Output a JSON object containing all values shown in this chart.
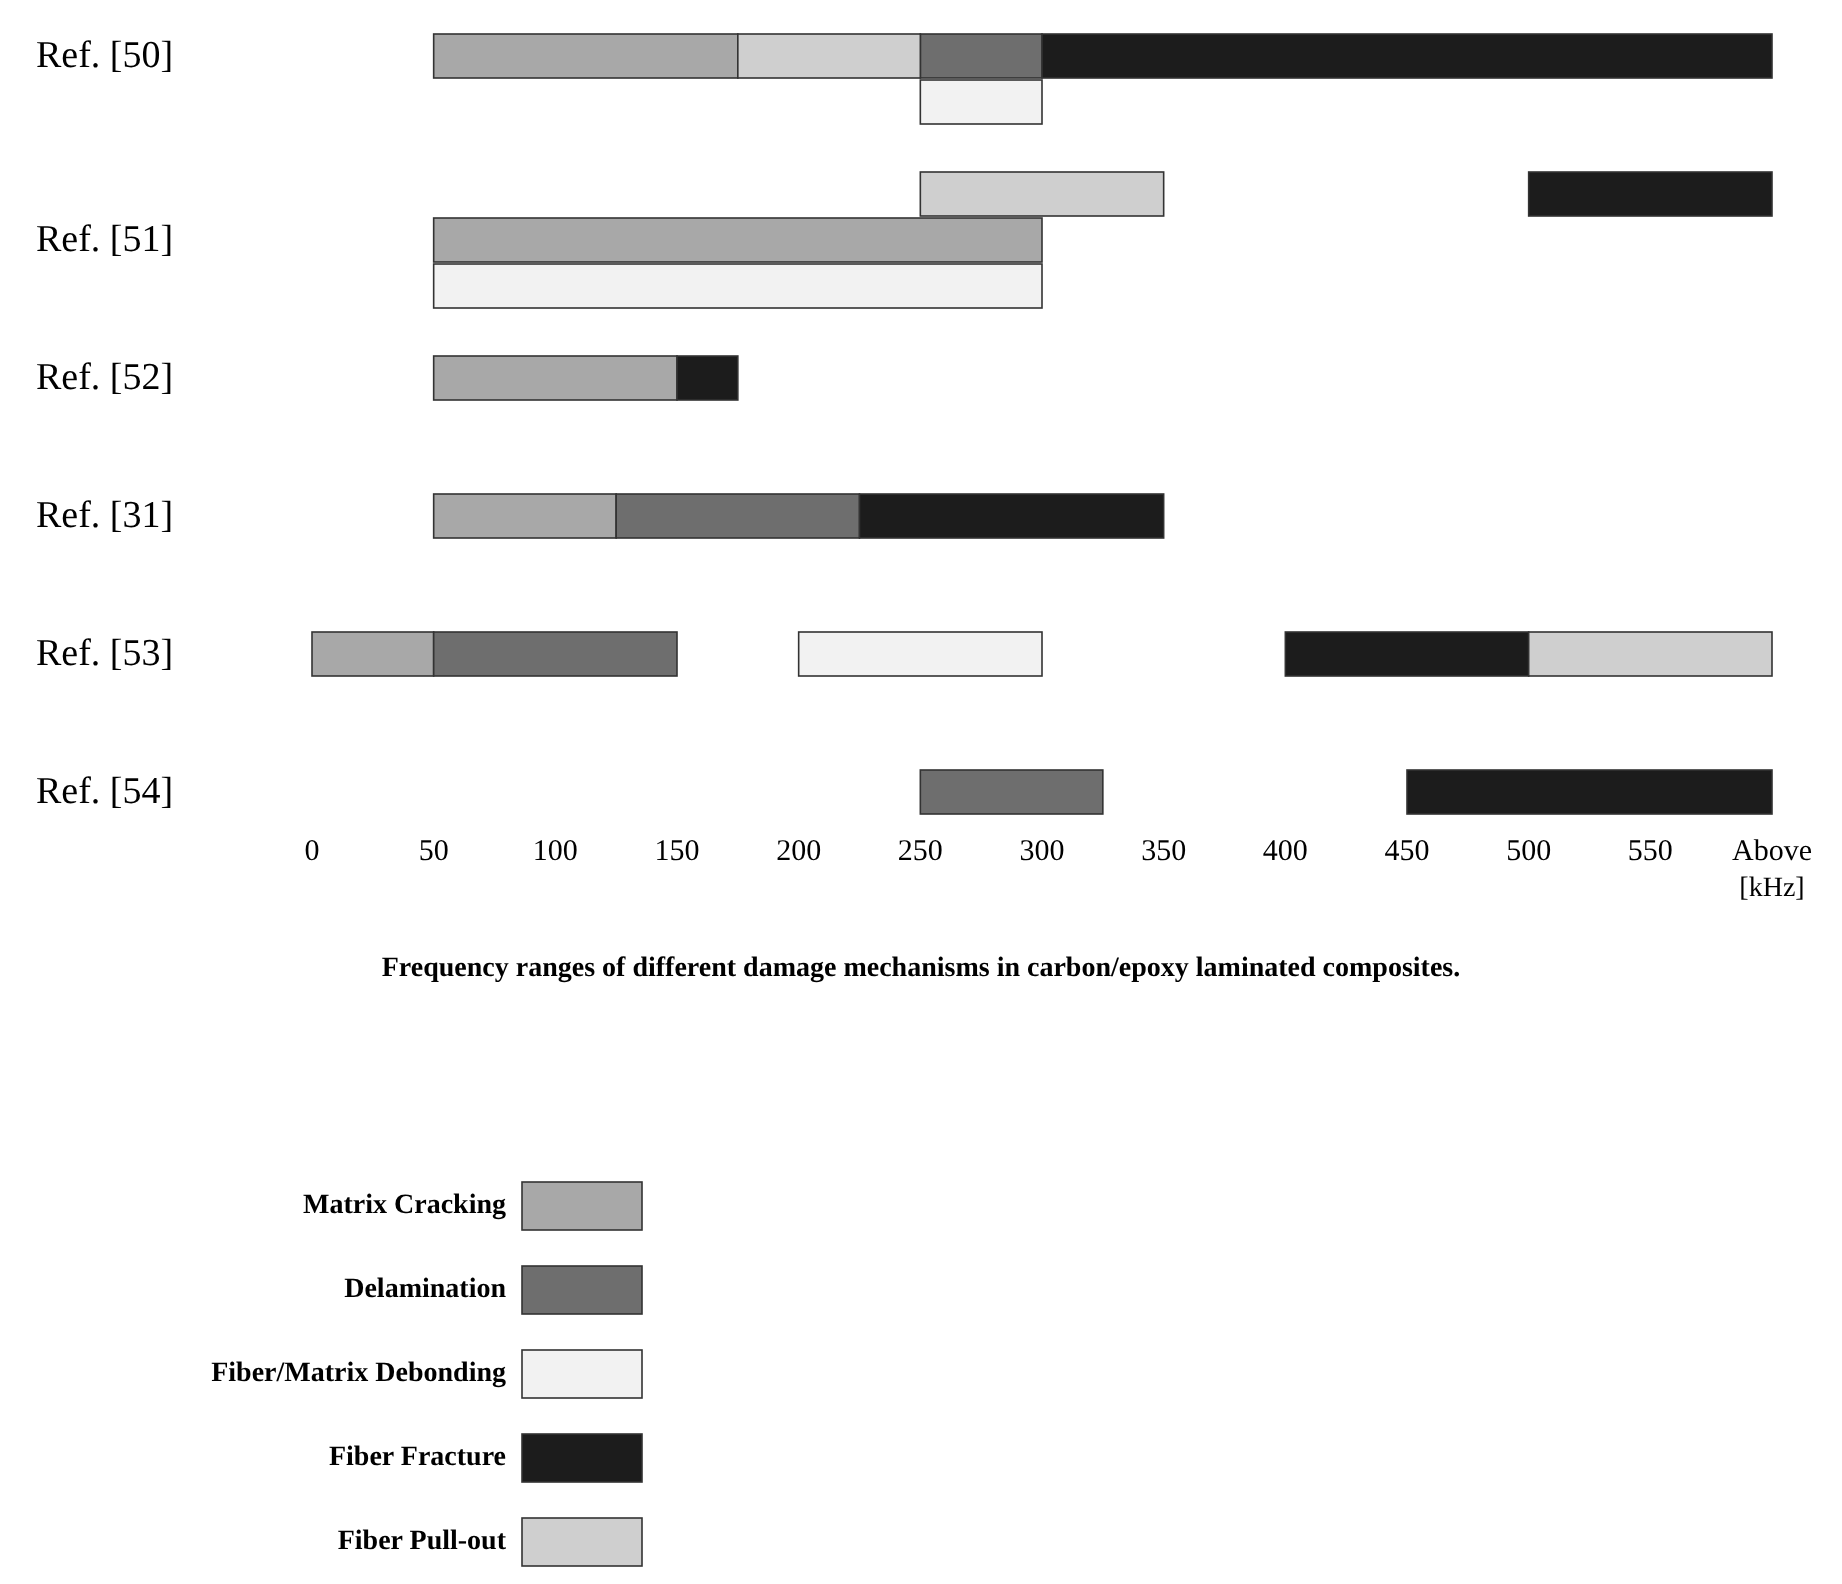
{
  "chart_data": {
    "type": "bar",
    "orientation": "horizontal",
    "title": "Frequency ranges of different damage mechanisms in carbon/epoxy laminated composites.",
    "xlabel": "[kHz]",
    "categories": [
      "Ref. [50]",
      null,
      null,
      null,
      "Ref. [51]",
      null,
      null,
      "Ref. [52]",
      null,
      null,
      "Ref. [31]",
      null,
      null,
      "Ref. [53]",
      null,
      null,
      "Ref. [54]"
    ],
    "xlim": [
      0,
      600
    ],
    "xticks": [
      0,
      50,
      100,
      150,
      200,
      250,
      300,
      350,
      400,
      450,
      500,
      550,
      {
        "value": 600,
        "label": "Above"
      }
    ],
    "grid": false,
    "legend": "bottom left",
    "series": [
      {
        "name": "Matrix Cracking",
        "color": "#a8a8a8",
        "values": [
          125,
          null,
          null,
          null,
          250,
          null,
          null,
          100,
          null,
          null,
          75,
          null,
          null,
          50,
          null,
          null,
          null
        ],
        "base": [
          50,
          null,
          null,
          null,
          50,
          null,
          null,
          50,
          null,
          null,
          50,
          null,
          null,
          0,
          null,
          null,
          null
        ]
      },
      {
        "name": "Delamination",
        "color": "#6e6e6e",
        "values": [
          50,
          null,
          null,
          null,
          null,
          null,
          null,
          null,
          null,
          null,
          100,
          null,
          null,
          100,
          null,
          null,
          75
        ],
        "base": [
          250,
          null,
          null,
          null,
          null,
          null,
          null,
          null,
          null,
          null,
          125,
          null,
          null,
          50,
          null,
          null,
          250
        ]
      },
      {
        "name": "Fiber/Matrix Debonding",
        "color": "#f2f2f2",
        "values": [
          null,
          50,
          null,
          null,
          null,
          250,
          null,
          null,
          null,
          null,
          null,
          null,
          null,
          100,
          null,
          null,
          null
        ],
        "base": [
          null,
          250,
          null,
          null,
          null,
          50,
          null,
          null,
          null,
          null,
          null,
          null,
          null,
          200,
          null,
          null,
          null
        ]
      },
      {
        "name": "Fiber Fracture",
        "color": "#1c1c1c",
        "values": [
          300,
          null,
          null,
          100,
          null,
          null,
          null,
          25,
          null,
          null,
          125,
          null,
          null,
          100,
          null,
          null,
          150
        ],
        "base": [
          300,
          null,
          null,
          500,
          null,
          null,
          null,
          150,
          null,
          null,
          225,
          null,
          null,
          400,
          null,
          null,
          450
        ]
      },
      {
        "name": "Fiber Pull-out",
        "color": "#cfcfcf",
        "values": [
          75,
          null,
          null,
          100,
          null,
          null,
          null,
          null,
          null,
          null,
          null,
          null,
          null,
          100,
          null,
          null,
          null
        ],
        "base": [
          175,
          null,
          null,
          250,
          null,
          null,
          null,
          null,
          null,
          null,
          null,
          null,
          null,
          500,
          null,
          null,
          null
        ]
      }
    ]
  }
}
